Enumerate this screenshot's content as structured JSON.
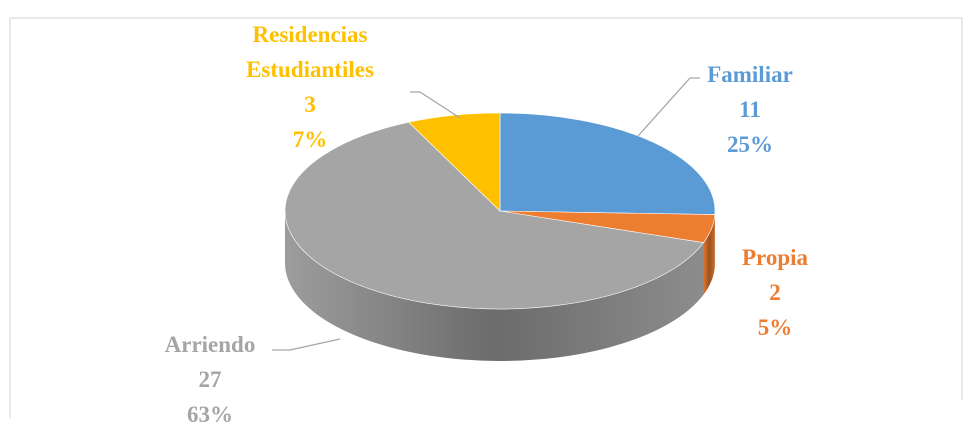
{
  "chart_data": {
    "type": "pie3d",
    "categories": [
      "Familiar",
      "Propia",
      "Arriendo",
      "Residencias Estudiantiles"
    ],
    "values": [
      11,
      2,
      27,
      3
    ],
    "percentages": [
      "25%",
      "5%",
      "63%",
      "7%"
    ],
    "colors": [
      "#5b9bd5",
      "#ed7d31",
      "#a5a5a5",
      "#ffc000"
    ],
    "label_colors": [
      "#5b9bd5",
      "#ed7d31",
      "#a5a5a5",
      "#ffc000"
    ]
  }
}
